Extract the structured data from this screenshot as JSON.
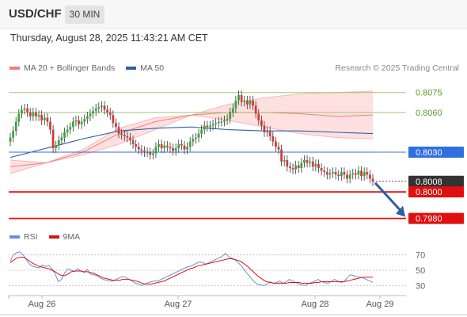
{
  "header": {
    "symbol": "USD/CHF",
    "timeframe": "30 MIN",
    "timestamp": "Thursday, August 28, 2025 11:43:21 AM CET"
  },
  "legend": {
    "ma20_label": "MA 20 + Bollinger Bands",
    "ma50_label": "MA 50",
    "copyright": "Research © 2025 Trading Central"
  },
  "rsi_legend": {
    "rsi_label": "RSI",
    "ma_label": "9MA"
  },
  "colors": {
    "bullish": "#38a838",
    "bearish": "#d63a3a",
    "ma20": "#f08080",
    "bollinger": "#ffd5d5",
    "ma50": "#2f5fa6",
    "pivot_level": "#2f6fe0",
    "support": "#e01010",
    "resistance": "#9cc870",
    "last_price": "#333333",
    "rsi": "#6a8fd8",
    "rsi_ma": "#e01010"
  },
  "chart_data": {
    "type": "candlestick",
    "x_labels": [
      "Aug 26",
      "Aug 27",
      "Aug 28",
      "Aug 29"
    ],
    "price_range": [
      0.7975,
      0.8085
    ],
    "levels": [
      {
        "value": 0.8075,
        "label": "0.8075",
        "kind": "resistance"
      },
      {
        "value": 0.806,
        "label": "0.8060",
        "kind": "resistance"
      },
      {
        "value": 0.803,
        "label": "0.8030",
        "kind": "pivot"
      },
      {
        "value": 0.8008,
        "label": "0.8008",
        "kind": "last"
      },
      {
        "value": 0.8,
        "label": "0.8000",
        "kind": "support"
      },
      {
        "value": 0.798,
        "label": "0.7980",
        "kind": "support"
      }
    ],
    "forecast": {
      "from": 0.8008,
      "to": 0.798,
      "direction": "down"
    },
    "close": [
      0.8041,
      0.8046,
      0.8053,
      0.8059,
      0.8062,
      0.8063,
      0.806,
      0.8057,
      0.806,
      0.8057,
      0.8058,
      0.8054,
      0.8056,
      0.8053,
      0.8047,
      0.8033,
      0.8035,
      0.8039,
      0.8041,
      0.8045,
      0.8047,
      0.8049,
      0.8053,
      0.8054,
      0.8051,
      0.8053,
      0.8055,
      0.8057,
      0.8059,
      0.8061,
      0.8063,
      0.8064,
      0.8065,
      0.8062,
      0.806,
      0.8058,
      0.8052,
      0.8049,
      0.8044,
      0.8043,
      0.8042,
      0.8041,
      0.8039,
      0.8036,
      0.8034,
      0.8032,
      0.8031,
      0.803,
      0.803,
      0.8028,
      0.8029,
      0.8034,
      0.8036,
      0.8033,
      0.8035,
      0.8034,
      0.8033,
      0.8031,
      0.8033,
      0.8036,
      0.8035,
      0.8032,
      0.8034,
      0.8038,
      0.804,
      0.8041,
      0.8044,
      0.8047,
      0.805,
      0.8049,
      0.805,
      0.8051,
      0.8052,
      0.8053,
      0.8053,
      0.8054,
      0.8055,
      0.806,
      0.8063,
      0.8069,
      0.8073,
      0.8068,
      0.8069,
      0.8066,
      0.8069,
      0.8065,
      0.8059,
      0.8054,
      0.805,
      0.8045,
      0.8046,
      0.8042,
      0.8038,
      0.8034,
      0.8032,
      0.8023,
      0.8024,
      0.8019,
      0.8018,
      0.8017,
      0.802,
      0.8018,
      0.8022,
      0.8024,
      0.8022,
      0.8023,
      0.8019,
      0.8021,
      0.8018,
      0.8016,
      0.8015,
      0.8013,
      0.8014,
      0.8015,
      0.8013,
      0.8012,
      0.8015,
      0.8013,
      0.801,
      0.8013,
      0.8014,
      0.8013,
      0.8016,
      0.8012,
      0.8015,
      0.8013,
      0.801,
      0.8008
    ],
    "ma20_upper": [
      0.8024,
      0.8022,
      0.8028,
      0.8036,
      0.8047,
      0.8058,
      0.8066,
      0.8071,
      0.8074,
      0.8075,
      0.8076
    ],
    "ma20_mid": [
      0.8019,
      0.8022,
      0.803,
      0.8044,
      0.8053,
      0.8058,
      0.806,
      0.806,
      0.8059,
      0.8057,
      0.8058
    ],
    "ma20_lower": [
      0.8014,
      0.8022,
      0.8032,
      0.8048,
      0.8056,
      0.8058,
      0.8054,
      0.8049,
      0.8044,
      0.8041,
      0.804
    ],
    "ma50": [
      0.8026,
      0.8033,
      0.804,
      0.8046,
      0.8048,
      0.8049,
      0.8047,
      0.8046,
      0.8046,
      0.8045,
      0.8044
    ],
    "rsi": {
      "range": [
        20,
        80
      ],
      "levels": [
        70,
        50,
        30
      ],
      "values": [
        62,
        70,
        73,
        74,
        70,
        64,
        58,
        55,
        54,
        53,
        57,
        55,
        56,
        52,
        45,
        35,
        38,
        47,
        52,
        50,
        48,
        52,
        49,
        47,
        51,
        45,
        44,
        43,
        40,
        38,
        37,
        36,
        36,
        38,
        40,
        42,
        41,
        38,
        36,
        33,
        32,
        30,
        32,
        34,
        35,
        36,
        36,
        38,
        40,
        42,
        44,
        46,
        48,
        50,
        52,
        54,
        55,
        57,
        59,
        61,
        60,
        58,
        60,
        62,
        64,
        66,
        68,
        72,
        68,
        66,
        64,
        60,
        56,
        50,
        45,
        40,
        35,
        32,
        31,
        30,
        32,
        35,
        33,
        34,
        36,
        33,
        35,
        38,
        36,
        34,
        32,
        31,
        30,
        33,
        34,
        36,
        38,
        35,
        34,
        33,
        35,
        38,
        36,
        34,
        35,
        40,
        44,
        43,
        42,
        41,
        40,
        38,
        36,
        34
      ],
      "ma9": [
        60,
        63,
        66,
        67,
        67,
        65,
        62,
        59,
        57,
        55,
        54,
        53,
        52,
        50,
        48,
        45,
        43,
        43,
        45,
        48,
        49,
        49,
        49,
        48,
        48,
        47,
        46,
        44,
        42,
        40,
        39,
        38,
        37,
        37,
        37,
        38,
        38,
        38,
        37,
        36,
        35,
        33,
        32,
        32,
        32,
        33,
        34,
        35,
        36,
        38,
        40,
        42,
        44,
        46,
        48,
        50,
        52,
        53,
        55,
        56,
        57,
        58,
        59,
        60,
        61,
        62,
        63,
        64,
        65,
        65,
        64,
        63,
        61,
        58,
        55,
        51,
        47,
        43,
        40,
        37,
        35,
        34,
        33,
        33,
        33,
        33,
        33,
        34,
        34,
        34,
        34,
        33,
        33,
        33,
        33,
        34,
        34,
        35,
        35,
        35,
        35,
        35,
        35,
        35,
        35,
        36,
        37,
        38,
        39,
        40,
        41,
        41,
        41,
        41
      ]
    }
  }
}
